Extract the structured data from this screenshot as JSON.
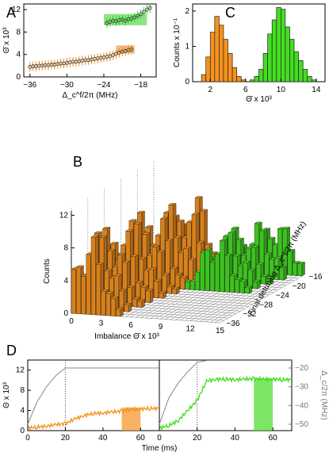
{
  "chart_data": [
    {
      "panel": "A",
      "type": "scatter",
      "xlabel": "Δ_c^f/2π (MHz)",
      "ylabel": "Θ̄ x 10³",
      "xticks": [
        "−36",
        "−30",
        "−24",
        "−18"
      ],
      "yticks": [
        "0",
        "4",
        "8",
        "12"
      ],
      "xlim": [
        -37,
        -15.5
      ],
      "ylim": [
        0,
        13
      ],
      "series": [
        {
          "color": "#f08c1a",
          "x": [
            -36,
            -35.5,
            -35,
            -34.5,
            -34,
            -33.5,
            -33,
            -32.5,
            -32,
            -31.5,
            -31,
            -30.5,
            -30,
            -29.5,
            -29,
            -28.5,
            -28,
            -27.5,
            -27,
            -26.5,
            -26,
            -25.5,
            -25,
            -24.5,
            -24,
            -23.5,
            -23,
            -22.5,
            -22,
            -21.5,
            -21,
            -20.5,
            -20,
            -19.5
          ],
          "y": [
            1.8,
            1.9,
            1.9,
            2.0,
            2.0,
            2.1,
            2.1,
            2.2,
            2.2,
            2.3,
            2.4,
            2.4,
            2.5,
            2.6,
            2.7,
            2.7,
            2.8,
            2.9,
            3.0,
            3.0,
            3.1,
            3.2,
            3.3,
            3.4,
            3.5,
            3.6,
            3.7,
            3.9,
            4.1,
            4.3,
            4.5,
            4.6,
            4.8,
            4.9
          ]
        },
        {
          "color": "#33cc33",
          "x": [
            -23.5,
            -23,
            -22.5,
            -22,
            -21.5,
            -21,
            -20.5,
            -20,
            -19.5,
            -19,
            -18.5,
            -18,
            -17.5,
            -17,
            -16.5
          ],
          "y": [
            9.6,
            9.8,
            10.0,
            9.9,
            10.1,
            10.2,
            10.0,
            10.3,
            10.4,
            10.6,
            10.9,
            11.2,
            11.6,
            12.0,
            12.3
          ]
        }
      ],
      "highlight_bands": [
        {
          "color": "#f0a050",
          "x": [
            -22,
            -19
          ],
          "y": [
            4.2,
            5.6
          ]
        },
        {
          "color": "#66dd55",
          "x": [
            -24,
            -17
          ],
          "y": [
            9.2,
            11.2
          ]
        }
      ]
    },
    {
      "panel": "C",
      "type": "bar",
      "xlabel": "Θ̄ x 10³",
      "ylabel": "Counts x 10⁻¹",
      "xticks": [
        "2",
        "6",
        "10",
        "14"
      ],
      "yticks": [
        "0",
        "1",
        "2"
      ],
      "xlim": [
        0,
        15
      ],
      "ylim": [
        0,
        2.2
      ],
      "bin_width": 0.5,
      "series": [
        {
          "color": "#f5921e",
          "x": [
            1,
            1.5,
            2,
            2.5,
            3,
            3.5,
            4,
            4.5,
            5,
            5.5
          ],
          "values": [
            0.2,
            0.7,
            1.4,
            1.85,
            1.6,
            1.2,
            0.8,
            0.4,
            0.15,
            0.05
          ]
        },
        {
          "color": "#44dd22",
          "x": [
            6.5,
            7,
            7.5,
            8,
            8.5,
            9,
            9.5,
            10,
            10.5,
            11,
            11.5,
            12,
            12.5,
            13,
            13.5
          ],
          "values": [
            0.05,
            0.15,
            0.35,
            0.8,
            1.35,
            1.75,
            2.1,
            2.05,
            1.55,
            1.2,
            0.85,
            0.6,
            0.35,
            0.15,
            0.05
          ]
        }
      ]
    },
    {
      "panel": "B",
      "type": "bar",
      "xlabel": "Imbalance Θ̄ x 10³",
      "ylabel": "Counts",
      "zlabel": "Final detuning Δ_c^f/2π (MHz)",
      "xticks": [
        "0",
        "3",
        "6",
        "9",
        "12",
        "15"
      ],
      "yticks": [
        "0",
        "4",
        "8",
        "12"
      ],
      "zticks": [
        "−16",
        "−20",
        "−24",
        "−28",
        "−32",
        "−36"
      ],
      "series": [
        {
          "color": "#f5921e",
          "rows_detuning": [
            -36,
            -34,
            -32,
            -30,
            -28,
            -26,
            -24,
            -22,
            -20,
            -18
          ],
          "profile_center_theta": [
            1.8,
            2.0,
            2.2,
            2.5,
            2.8,
            3.1,
            3.5,
            4.1,
            4.8,
            5.0
          ]
        },
        {
          "color": "#44dd22",
          "rows_detuning": [
            -24,
            -22,
            -20,
            -18,
            -16
          ],
          "profile_center_theta": [
            9.6,
            10.0,
            10.3,
            11.2,
            12.3
          ]
        }
      ]
    },
    {
      "panel": "D",
      "type": "line",
      "xlabel": "Time (ms)",
      "ylabel": "Θ x 10³",
      "y2label": "Δ_c/2π (MHz)",
      "xticks": [
        "0",
        "20",
        "40",
        "60"
      ],
      "yticks": [
        "0",
        "4",
        "8",
        "12"
      ],
      "y2ticks": [
        "−20",
        "−30",
        "−40",
        "−50"
      ],
      "xlim": [
        0,
        70
      ],
      "ylim": [
        0,
        14
      ],
      "subpanels": [
        {
          "series_color": "#f5921e",
          "t": [
            0,
            5,
            10,
            15,
            20,
            25,
            30,
            35,
            40,
            45,
            50,
            55,
            60,
            65,
            70
          ],
          "theta": [
            0.5,
            0.7,
            0.9,
            1.2,
            1.4,
            2.3,
            3.0,
            3.4,
            3.5,
            3.7,
            3.9,
            4.2,
            4.3,
            4.4,
            4.4
          ],
          "detuning": [
            -50,
            -38,
            -30,
            -24,
            -20,
            -20,
            -20,
            -20,
            -20,
            -20,
            -20,
            -20,
            -20,
            -20,
            -20
          ],
          "window_ms": [
            50,
            60
          ]
        },
        {
          "series_color": "#44dd22",
          "t": [
            0,
            5,
            10,
            15,
            20,
            25,
            30,
            35,
            40,
            45,
            50,
            55,
            60,
            65,
            70
          ],
          "theta": [
            0.5,
            1.0,
            2.0,
            4.0,
            6.0,
            9.8,
            10.2,
            10.2,
            10.1,
            10.2,
            10.3,
            10.2,
            10.2,
            10.1,
            10.1
          ],
          "detuning": [
            -50,
            -36,
            -28,
            -22,
            -17,
            -16,
            -16,
            -16,
            -16,
            -16,
            -16,
            -16,
            -16,
            -16,
            -16
          ],
          "window_ms": [
            50,
            60
          ]
        }
      ],
      "marker_ms": 20
    }
  ],
  "labels": {
    "A": "A",
    "B": "B",
    "C": "C",
    "D": "D"
  }
}
